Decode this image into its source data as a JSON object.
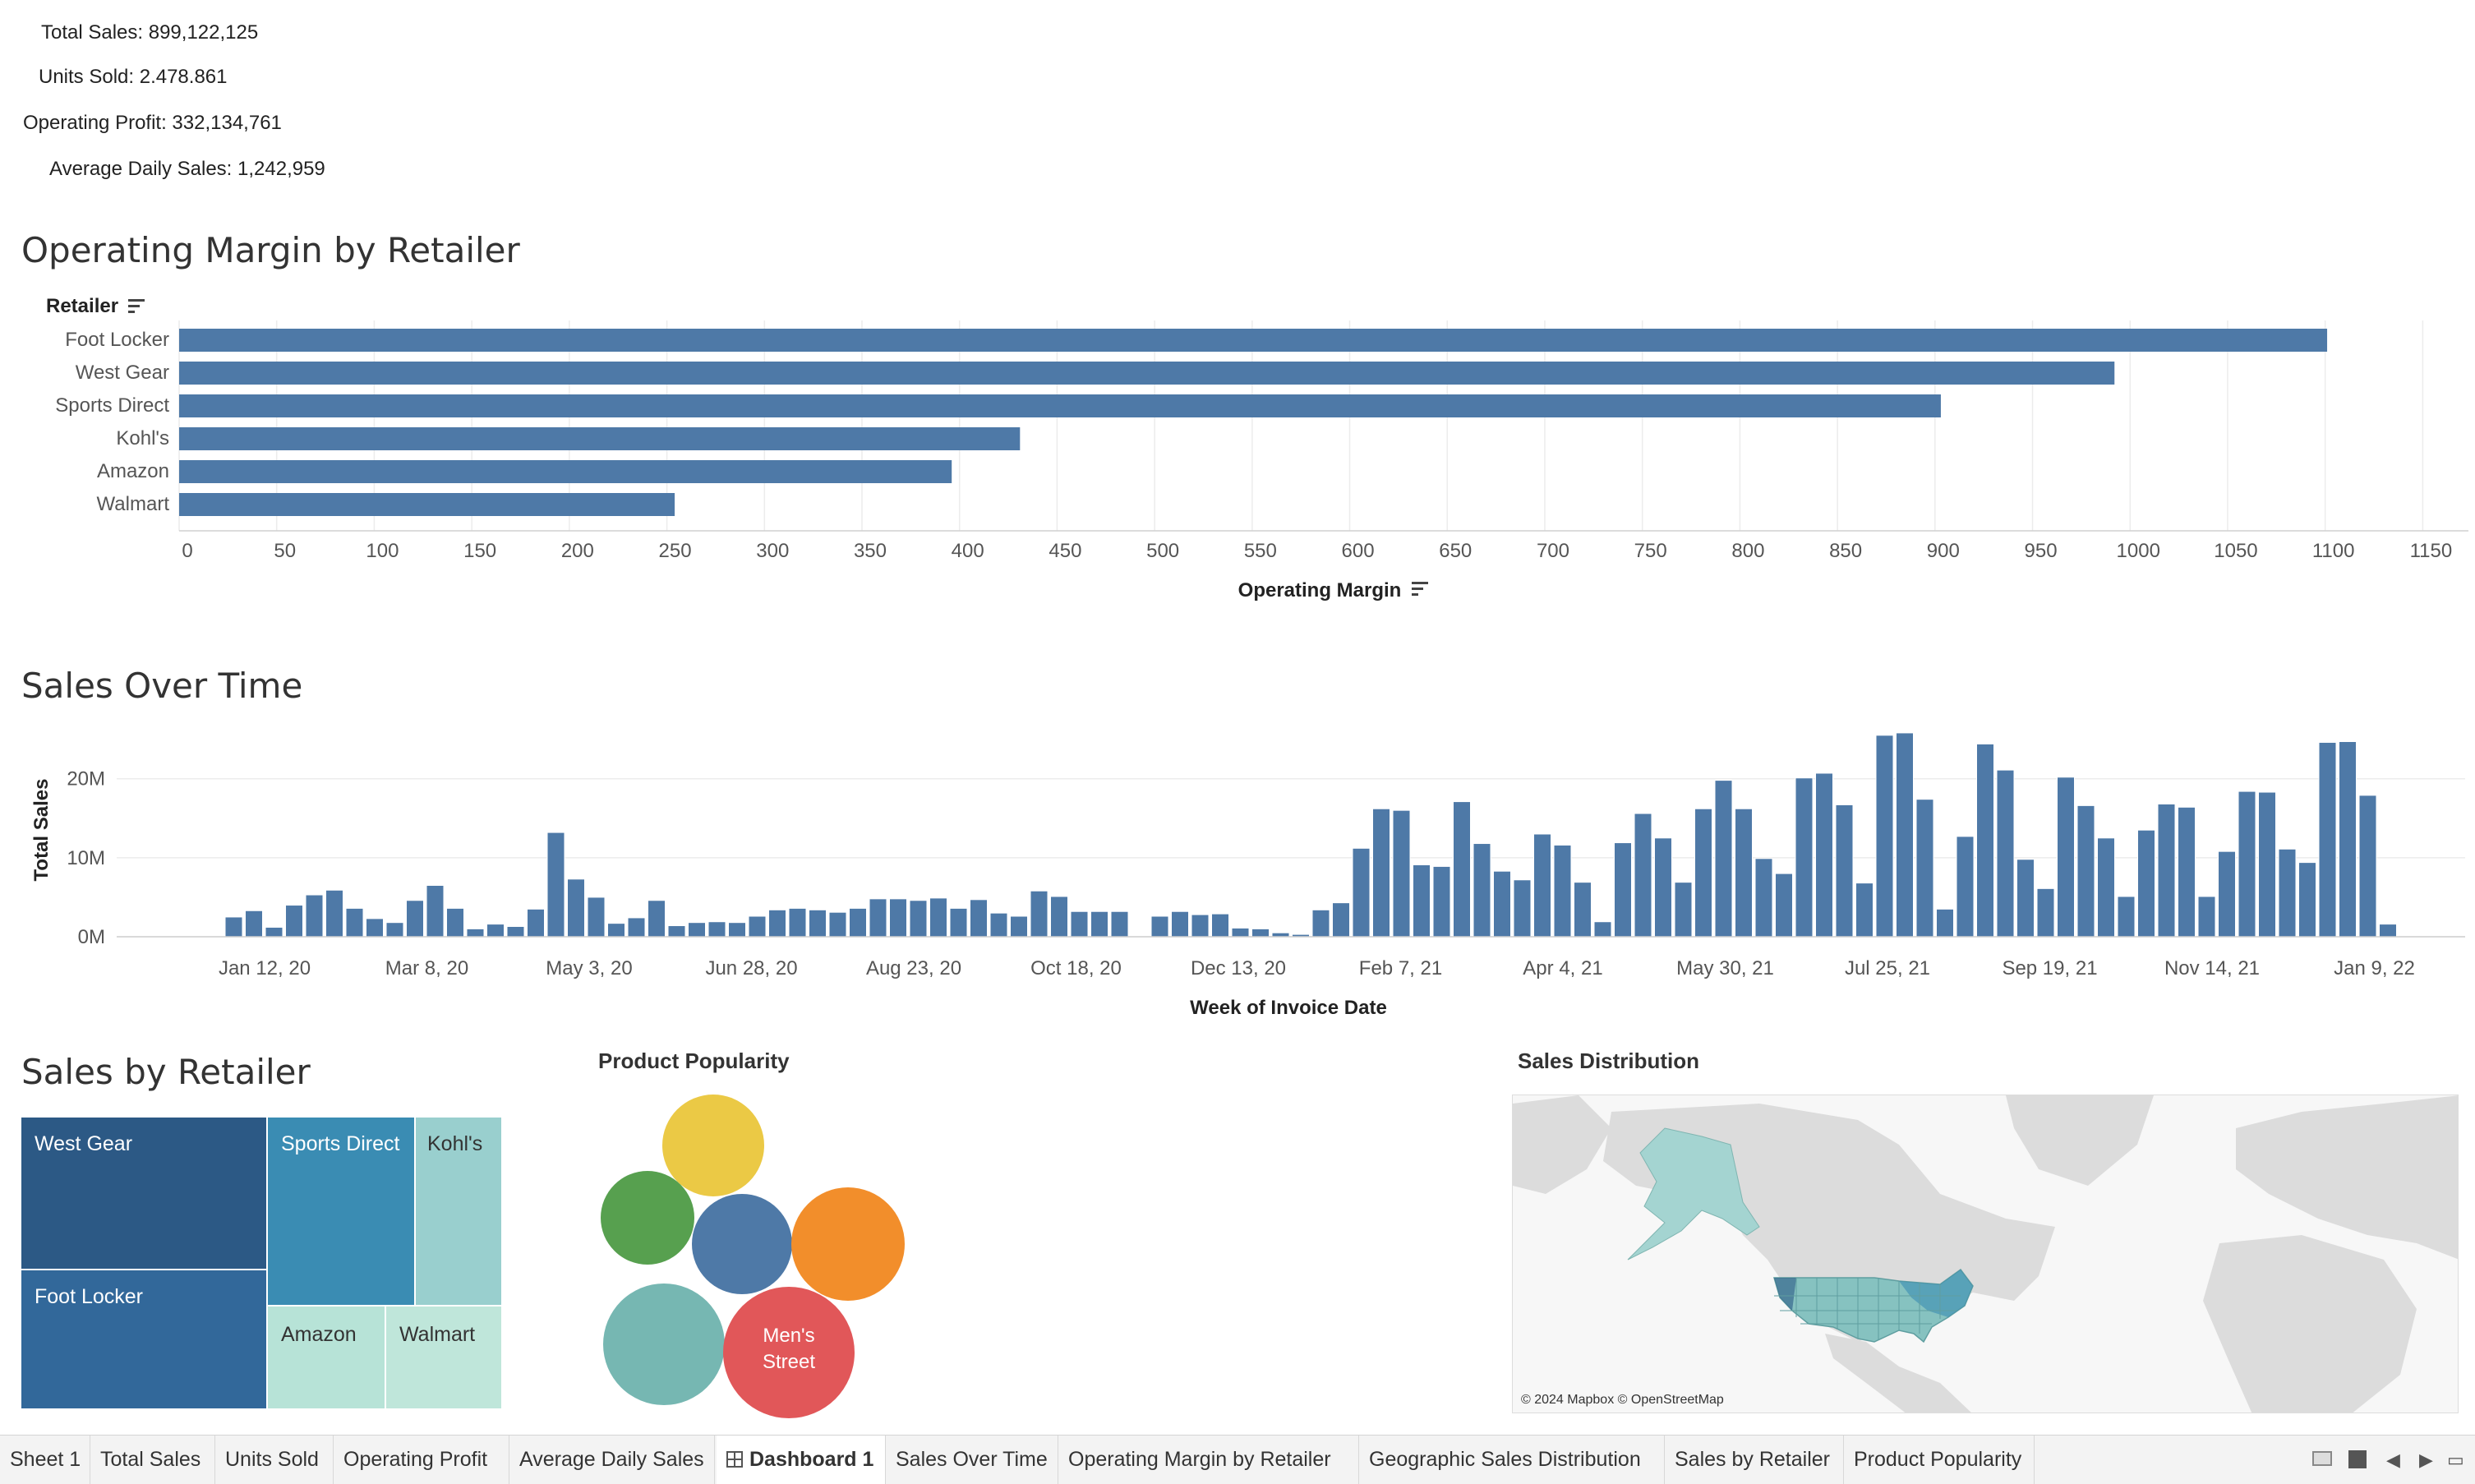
{
  "kpis": {
    "total_sales": "Total Sales: 899,122,125",
    "units_sold": "Units Sold: 2.478.861",
    "operating_profit": "Operating Profit: 332,134,761",
    "avg_daily_sales": "Average Daily Sales: 1,242,959"
  },
  "titles": {
    "operating_margin": "Operating Margin by Retailer",
    "sales_over_time": "Sales Over Time",
    "sales_by_retailer": "Sales by Retailer",
    "product_popularity": "Product Popularity",
    "sales_distribution": "Sales Distribution"
  },
  "chart_data": [
    {
      "type": "bar",
      "orientation": "horizontal",
      "title": "Operating Margin by Retailer",
      "categories_header": "Retailer",
      "xlabel": "Operating Margin",
      "categories": [
        "Foot Locker",
        "West Gear",
        "Sports Direct",
        "Kohl's",
        "Amazon",
        "Walmart"
      ],
      "values": [
        1101,
        992,
        903,
        431,
        396,
        254
      ],
      "xlim": [
        0,
        1165
      ],
      "ticks": [
        0,
        50,
        100,
        150,
        200,
        250,
        300,
        350,
        400,
        450,
        500,
        550,
        600,
        650,
        700,
        750,
        800,
        850,
        900,
        950,
        1000,
        1050,
        1100,
        1150
      ],
      "color": "#4e79a7",
      "grid": true
    },
    {
      "type": "bar",
      "title": "Sales Over Time",
      "xlabel": "Week of Invoice Date",
      "ylabel": "Total Sales",
      "ylim": [
        0,
        26000000
      ],
      "yticks": [
        {
          "v": 0,
          "label": "0M"
        },
        {
          "v": 10000000,
          "label": "10M"
        },
        {
          "v": 20000000,
          "label": "20M"
        }
      ],
      "x_tick_labels": [
        "Jan 12, 20",
        "Mar 8, 20",
        "May 3, 20",
        "Jun 28, 20",
        "Aug 23, 20",
        "Oct 18, 20",
        "Dec 13, 20",
        "Feb 7, 21",
        "Apr 4, 21",
        "May 30, 21",
        "Jul 25, 21",
        "Sep 19, 21",
        "Nov 14, 21",
        "Jan 9, 22"
      ],
      "values_m": [
        2.5,
        3.3,
        1.2,
        4.0,
        5.3,
        5.9,
        3.6,
        2.3,
        1.8,
        4.6,
        6.5,
        3.6,
        1.0,
        1.6,
        1.3,
        3.5,
        13.2,
        7.3,
        5.0,
        1.7,
        2.4,
        4.6,
        1.4,
        1.8,
        1.9,
        1.8,
        2.6,
        3.4,
        3.6,
        3.4,
        3.1,
        3.6,
        4.8,
        4.8,
        4.6,
        4.9,
        3.6,
        4.7,
        3.0,
        2.6,
        5.8,
        5.1,
        3.2,
        3.2,
        3.2,
        0,
        2.6,
        3.2,
        2.8,
        2.9,
        1.1,
        1.0,
        0.5,
        0.3,
        3.4,
        4.3,
        11.2,
        16.2,
        16.0,
        9.1,
        8.9,
        17.1,
        11.8,
        8.3,
        7.2,
        13.0,
        11.6,
        6.9,
        1.9,
        11.9,
        15.6,
        12.5,
        6.9,
        16.2,
        19.8,
        16.2,
        9.9,
        8.0,
        20.1,
        20.7,
        16.7,
        6.8,
        25.5,
        25.8,
        17.4,
        3.5,
        12.7,
        24.4,
        21.1,
        9.8,
        6.1,
        20.2,
        16.6,
        12.5,
        5.1,
        13.5,
        16.8,
        16.4,
        5.1,
        10.8,
        18.4,
        18.3,
        11.1,
        9.4,
        24.6,
        24.7,
        17.9,
        1.6
      ],
      "color": "#4e79a7",
      "grid": true
    },
    {
      "type": "treemap",
      "title": "Sales by Retailer",
      "items": [
        {
          "name": "West Gear",
          "value": 242964333,
          "color": "#2c5985"
        },
        {
          "name": "Foot Locker",
          "value": 241258024,
          "color": "#32689a"
        },
        {
          "name": "Sports Direct",
          "value": 182470997,
          "color": "#3a8cb3"
        },
        {
          "name": "Kohl's",
          "value": 102114753,
          "color": "#99cfce"
        },
        {
          "name": "Amazon",
          "value": 77698912,
          "color": "#b7e3d7"
        },
        {
          "name": "Walmart",
          "value": 74558410,
          "color": "#bfe6da"
        }
      ]
    },
    {
      "type": "bubble",
      "title": "Product Popularity",
      "items": [
        {
          "label": "",
          "color": "#ebc945",
          "value": 4.3
        },
        {
          "label": "",
          "color": "#57a04f",
          "value": 3.4
        },
        {
          "label": "",
          "color": "#4e79a7",
          "value": 4.0
        },
        {
          "label": "",
          "color": "#f28e2b",
          "value": 5.1
        },
        {
          "label": "",
          "color": "#76b7b2",
          "value": 5.7
        },
        {
          "label": "Men's Street",
          "color": "#e15759",
          "value": 6.9
        }
      ]
    }
  ],
  "map": {
    "attribution": "© 2024 Mapbox © OpenStreetMap",
    "land_color": "#dcdcdc",
    "water_color": "#f7f7f7",
    "highlight_color": "#a4d4d1"
  },
  "tabs": [
    {
      "label": "Sheet 1",
      "active": false
    },
    {
      "label": "Total Sales",
      "active": false
    },
    {
      "label": "Units Sold",
      "active": false
    },
    {
      "label": "Operating Profit",
      "active": false
    },
    {
      "label": "Average Daily Sales",
      "active": false
    },
    {
      "label": "Dashboard 1",
      "active": true
    },
    {
      "label": "Sales Over Time",
      "active": false
    },
    {
      "label": "Operating Margin by Retailer",
      "active": false
    },
    {
      "label": "Geographic Sales Distribution",
      "active": false
    },
    {
      "label": "Sales by Retailer",
      "active": false
    },
    {
      "label": "Product Popularity",
      "active": false
    }
  ]
}
